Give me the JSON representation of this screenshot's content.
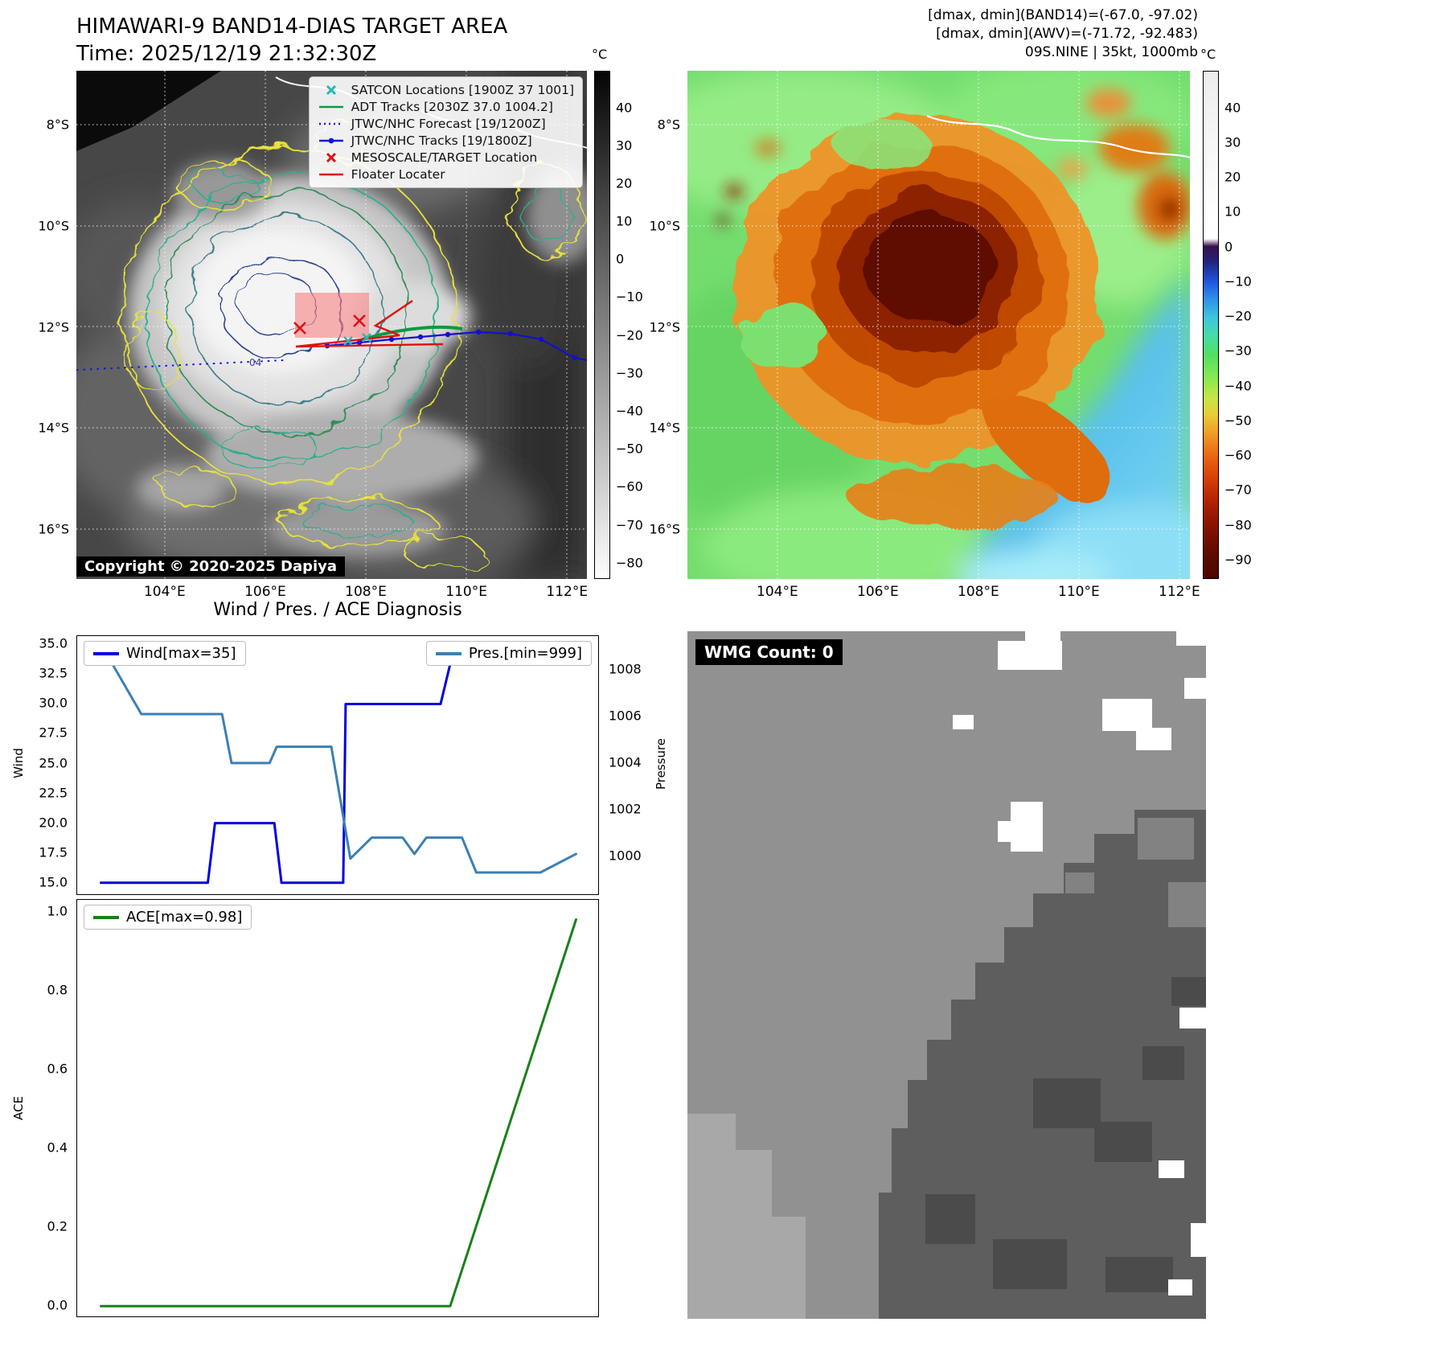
{
  "panel_tl": {
    "title_line1": "HIMAWARI-9 BAND14-DIAS TARGET AREA",
    "title_line2": "Time: 2025/12/19 21:32:30Z",
    "colorbar_unit": "°C",
    "colorbar_ticks": [
      "40",
      "30",
      "20",
      "10",
      "0",
      "−10",
      "−20",
      "−30",
      "−40",
      "−50",
      "−60",
      "−70",
      "−80"
    ],
    "lat_labels": [
      "8°S",
      "10°S",
      "12°S",
      "14°S",
      "16°S"
    ],
    "lon_labels": [
      "104°E",
      "106°E",
      "108°E",
      "110°E",
      "112°E"
    ],
    "legend": [
      {
        "label": "SATCON Locations [1900Z 37 1001]",
        "marker": "x",
        "color": "#26b8b8"
      },
      {
        "label": "ADT Tracks [2030Z 37.0 1004.2]",
        "marker": "line",
        "color": "#0b9a40"
      },
      {
        "label": "JTWC/NHC Forecast [19/1200Z]",
        "marker": "dotted",
        "color": "#1414e0"
      },
      {
        "label": "JTWC/NHC Tracks [19/1800Z]",
        "marker": "line-dot",
        "color": "#1414e0"
      },
      {
        "label": "MESOSCALE/TARGET Location",
        "marker": "x",
        "color": "#e01010"
      },
      {
        "label": "Floater Locater",
        "marker": "line",
        "color": "#e01010"
      }
    ],
    "map_annotation": "04",
    "copyright": "Copyright © 2020-2025 Dapiya"
  },
  "panel_tr": {
    "header_line1": "[dmax, dmin](BAND14)=(-67.0, -97.02)",
    "header_line2": "[dmax, dmin](AWV)=(-71.72, -92.483)",
    "header_line3": "09S.NINE | 35kt, 1000mb",
    "colorbar_unit": "°C",
    "colorbar_ticks": [
      "40",
      "30",
      "20",
      "10",
      "0",
      "−10",
      "−20",
      "−30",
      "−40",
      "−50",
      "−60",
      "−70",
      "−80",
      "−90"
    ],
    "lat_labels": [
      "8°S",
      "10°S",
      "12°S",
      "14°S",
      "16°S"
    ],
    "lon_labels": [
      "104°E",
      "106°E",
      "108°E",
      "110°E",
      "112°E"
    ]
  },
  "panel_bl": {
    "title": "Wind / Pres. / ACE Diagnosis"
  },
  "panel_br": {
    "wmg_label": "WMG Count: 0"
  },
  "chart_data": [
    {
      "type": "line",
      "title": "Wind / Pres. / ACE Diagnosis",
      "xlim": [
        -1,
        21
      ],
      "grid": false,
      "legend_position": [
        "upper left",
        "upper right"
      ],
      "left_axis": {
        "label": "Wind",
        "ylim": [
          13.9,
          35.7
        ],
        "tick_labels": [
          "35.0",
          "32.5",
          "30.0",
          "27.5",
          "25.0",
          "22.5",
          "20.0",
          "17.5",
          "15.0"
        ]
      },
      "right_axis": {
        "label": "Pressure",
        "ylim": [
          998.3,
          1009.45
        ],
        "tick_labels": [
          "1008",
          "1006",
          "1004",
          "1002",
          "1000"
        ]
      },
      "series": [
        {
          "name": "Wind[max=35]",
          "axis": "left",
          "color": "#0000dd",
          "width": 3,
          "points": [
            [
              0,
              15
            ],
            [
              4.5,
              15
            ],
            [
              4.8,
              20
            ],
            [
              7.3,
              20
            ],
            [
              7.6,
              15
            ],
            [
              10.2,
              15
            ],
            [
              10.3,
              30
            ],
            [
              14.3,
              30
            ],
            [
              14.9,
              35
            ],
            [
              20,
              35
            ]
          ]
        },
        {
          "name": "Pres.[min=999]",
          "axis": "right",
          "color": "#3b7fb5",
          "width": 3,
          "points": [
            [
              0,
              1009.1
            ],
            [
              1.7,
              1006.1
            ],
            [
              5.1,
              1006.1
            ],
            [
              5.5,
              1004
            ],
            [
              7.1,
              1004
            ],
            [
              7.4,
              1004.7
            ],
            [
              9.7,
              1004.7
            ],
            [
              10.5,
              999.9
            ],
            [
              11.4,
              1000.8
            ],
            [
              12.7,
              1000.8
            ],
            [
              13.2,
              1000.1
            ],
            [
              13.7,
              1000.8
            ],
            [
              15.2,
              1000.8
            ],
            [
              15.8,
              999.3
            ],
            [
              18.5,
              999.3
            ],
            [
              20,
              1000.1
            ]
          ]
        }
      ]
    },
    {
      "type": "line",
      "xlim": [
        -1,
        21
      ],
      "grid": false,
      "legend_position": [
        "upper left"
      ],
      "left_axis": {
        "label": "ACE",
        "ylim": [
          -0.03,
          1.03
        ],
        "tick_labels": [
          "1.0",
          "0.8",
          "0.6",
          "0.4",
          "0.2",
          "0.0"
        ]
      },
      "series": [
        {
          "name": "ACE[max=0.98]",
          "axis": "left",
          "color": "#1a801a",
          "width": 3,
          "points": [
            [
              0,
              0
            ],
            [
              14.7,
              0
            ],
            [
              20,
              0.98
            ]
          ]
        }
      ]
    }
  ]
}
